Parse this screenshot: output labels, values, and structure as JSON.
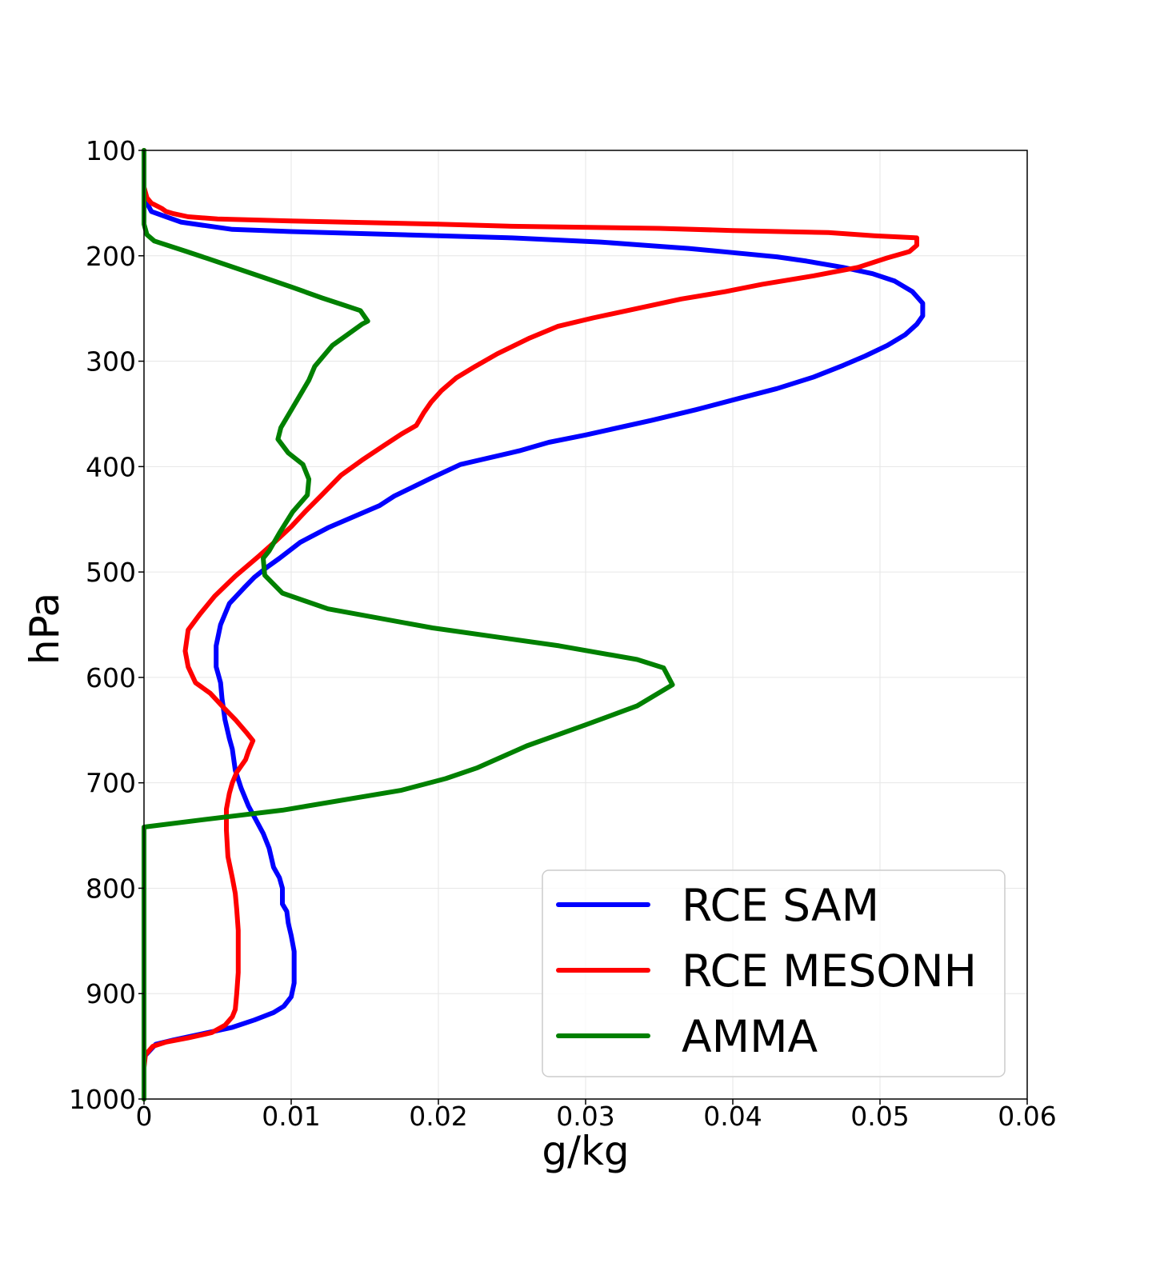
{
  "chart_data": {
    "type": "line",
    "title": "",
    "xlabel": "g/kg",
    "ylabel": "hPa",
    "xlim": [
      0,
      0.06
    ],
    "ylim": [
      1000,
      100
    ],
    "y_inverted": true,
    "grid": true,
    "legend_position": "lower-right",
    "x_ticks": [
      "0",
      "0.01",
      "0.02",
      "0.03",
      "0.04",
      "0.05",
      "0.06"
    ],
    "y_ticks": [
      "100",
      "200",
      "300",
      "400",
      "500",
      "600",
      "700",
      "800",
      "900",
      "1000"
    ],
    "series": [
      {
        "name": "RCE SAM",
        "color": "#0000ff",
        "points": [
          [
            0,
            1000
          ],
          [
            0,
            960
          ],
          [
            0.0008,
            948
          ],
          [
            0.002,
            944
          ],
          [
            0.004,
            938
          ],
          [
            0.006,
            932
          ],
          [
            0.0075,
            925
          ],
          [
            0.0088,
            918
          ],
          [
            0.0095,
            912
          ],
          [
            0.01,
            903
          ],
          [
            0.0102,
            890
          ],
          [
            0.0102,
            870
          ],
          [
            0.0102,
            860
          ],
          [
            0.01,
            845
          ],
          [
            0.0098,
            833
          ],
          [
            0.0097,
            822
          ],
          [
            0.0094,
            815
          ],
          [
            0.0094,
            800
          ],
          [
            0.0092,
            790
          ],
          [
            0.0088,
            780
          ],
          [
            0.0085,
            762
          ],
          [
            0.0081,
            748
          ],
          [
            0.0076,
            735
          ],
          [
            0.0071,
            722
          ],
          [
            0.0066,
            705
          ],
          [
            0.0062,
            688
          ],
          [
            0.006,
            668
          ],
          [
            0.0058,
            658
          ],
          [
            0.0055,
            640
          ],
          [
            0.0053,
            620
          ],
          [
            0.0052,
            605
          ],
          [
            0.0049,
            590
          ],
          [
            0.0049,
            570
          ],
          [
            0.0052,
            550
          ],
          [
            0.0058,
            530
          ],
          [
            0.0068,
            515
          ],
          [
            0.0075,
            505
          ],
          [
            0.0084,
            495
          ],
          [
            0.0092,
            487
          ],
          [
            0.0106,
            472
          ],
          [
            0.0125,
            458
          ],
          [
            0.015,
            443
          ],
          [
            0.016,
            437
          ],
          [
            0.017,
            428
          ],
          [
            0.0195,
            411
          ],
          [
            0.0215,
            398
          ],
          [
            0.0255,
            385
          ],
          [
            0.0275,
            377
          ],
          [
            0.03,
            370
          ],
          [
            0.0345,
            356
          ],
          [
            0.0375,
            346
          ],
          [
            0.0405,
            335
          ],
          [
            0.043,
            326
          ],
          [
            0.0455,
            315
          ],
          [
            0.0475,
            304
          ],
          [
            0.049,
            295
          ],
          [
            0.0505,
            285
          ],
          [
            0.0517,
            275
          ],
          [
            0.0525,
            265
          ],
          [
            0.0529,
            257
          ],
          [
            0.0529,
            245
          ],
          [
            0.0522,
            234
          ],
          [
            0.051,
            224
          ],
          [
            0.0495,
            217
          ],
          [
            0.0475,
            211
          ],
          [
            0.045,
            205
          ],
          [
            0.043,
            201
          ],
          [
            0.04,
            197
          ],
          [
            0.037,
            193
          ],
          [
            0.034,
            190
          ],
          [
            0.031,
            187
          ],
          [
            0.028,
            185
          ],
          [
            0.025,
            183
          ],
          [
            0.02,
            181
          ],
          [
            0.015,
            179
          ],
          [
            0.01,
            177
          ],
          [
            0.006,
            175
          ],
          [
            0.004,
            171
          ],
          [
            0.0025,
            168
          ],
          [
            0.0015,
            163
          ],
          [
            0.0005,
            158
          ],
          [
            0.0002,
            150
          ],
          [
            0,
            140
          ],
          [
            0,
            100
          ]
        ]
      },
      {
        "name": "RCE MESONH",
        "color": "#ff0000",
        "points": [
          [
            0,
            1000
          ],
          [
            0,
            970
          ],
          [
            0.0001,
            958
          ],
          [
            0.0006,
            950
          ],
          [
            0.0015,
            946
          ],
          [
            0.003,
            942
          ],
          [
            0.0046,
            937
          ],
          [
            0.0055,
            930
          ],
          [
            0.006,
            922
          ],
          [
            0.0062,
            915
          ],
          [
            0.0063,
            900
          ],
          [
            0.0064,
            880
          ],
          [
            0.0064,
            860
          ],
          [
            0.0064,
            840
          ],
          [
            0.0063,
            820
          ],
          [
            0.0062,
            805
          ],
          [
            0.006,
            790
          ],
          [
            0.0057,
            770
          ],
          [
            0.0056,
            745
          ],
          [
            0.0056,
            725
          ],
          [
            0.0058,
            710
          ],
          [
            0.006,
            700
          ],
          [
            0.0063,
            690
          ],
          [
            0.0069,
            678
          ],
          [
            0.0071,
            670
          ],
          [
            0.0074,
            660
          ],
          [
            0.007,
            653
          ],
          [
            0.0062,
            640
          ],
          [
            0.0055,
            630
          ],
          [
            0.0045,
            615
          ],
          [
            0.0035,
            605
          ],
          [
            0.003,
            590
          ],
          [
            0.0028,
            575
          ],
          [
            0.003,
            555
          ],
          [
            0.0038,
            540
          ],
          [
            0.0048,
            523
          ],
          [
            0.0062,
            504
          ],
          [
            0.0078,
            485
          ],
          [
            0.009,
            470
          ],
          [
            0.01,
            457
          ],
          [
            0.011,
            442
          ],
          [
            0.012,
            428
          ],
          [
            0.0134,
            408
          ],
          [
            0.0148,
            394
          ],
          [
            0.0163,
            380
          ],
          [
            0.0175,
            369
          ],
          [
            0.0185,
            361
          ],
          [
            0.019,
            349
          ],
          [
            0.0195,
            339
          ],
          [
            0.0202,
            328
          ],
          [
            0.0212,
            316
          ],
          [
            0.0225,
            305
          ],
          [
            0.024,
            293
          ],
          [
            0.0262,
            278
          ],
          [
            0.0281,
            267
          ],
          [
            0.0305,
            259
          ],
          [
            0.0335,
            250
          ],
          [
            0.0365,
            241
          ],
          [
            0.0395,
            234
          ],
          [
            0.042,
            227
          ],
          [
            0.0455,
            219
          ],
          [
            0.0485,
            211
          ],
          [
            0.0505,
            202
          ],
          [
            0.052,
            196
          ],
          [
            0.0525,
            190
          ],
          [
            0.0525,
            183
          ],
          [
            0.0496,
            181
          ],
          [
            0.0465,
            178
          ],
          [
            0.04,
            176
          ],
          [
            0.035,
            174
          ],
          [
            0.025,
            172
          ],
          [
            0.02,
            170
          ],
          [
            0.01,
            167
          ],
          [
            0.005,
            165
          ],
          [
            0.003,
            163
          ],
          [
            0.002,
            160
          ],
          [
            0.0015,
            158
          ],
          [
            0.0012,
            155
          ],
          [
            0.0005,
            150
          ],
          [
            0.0002,
            145
          ],
          [
            0,
            135
          ],
          [
            0,
            100
          ]
        ]
      },
      {
        "name": "AMMA",
        "color": "#008000",
        "points": [
          [
            0,
            1000
          ],
          [
            0,
            960
          ],
          [
            0,
            920
          ],
          [
            0,
            880
          ],
          [
            0,
            840
          ],
          [
            0,
            800
          ],
          [
            0,
            742
          ],
          [
            0.004,
            735
          ],
          [
            0.0094,
            726
          ],
          [
            0.0175,
            707
          ],
          [
            0.0205,
            696
          ],
          [
            0.0226,
            686
          ],
          [
            0.026,
            665
          ],
          [
            0.03,
            645
          ],
          [
            0.0335,
            627
          ],
          [
            0.0359,
            607
          ],
          [
            0.0353,
            591
          ],
          [
            0.0335,
            583
          ],
          [
            0.0282,
            570
          ],
          [
            0.0196,
            553
          ],
          [
            0.0125,
            535
          ],
          [
            0.0094,
            520
          ],
          [
            0.0082,
            503
          ],
          [
            0.0081,
            487
          ],
          [
            0.0085,
            480
          ],
          [
            0.0092,
            463
          ],
          [
            0.0101,
            443
          ],
          [
            0.0111,
            427
          ],
          [
            0.0112,
            412
          ],
          [
            0.0108,
            398
          ],
          [
            0.0098,
            387
          ],
          [
            0.0091,
            374
          ],
          [
            0.0093,
            363
          ],
          [
            0.0104,
            337
          ],
          [
            0.0112,
            318
          ],
          [
            0.0116,
            305
          ],
          [
            0.0128,
            285
          ],
          [
            0.0137,
            276
          ],
          [
            0.0148,
            265
          ],
          [
            0.0152,
            262
          ],
          [
            0.0147,
            252
          ],
          [
            0.0134,
            246
          ],
          [
            0.0121,
            240
          ],
          [
            0.0101,
            230
          ],
          [
            0.008,
            220
          ],
          [
            0.0044,
            203
          ],
          [
            0.0029,
            196
          ],
          [
            0.0007,
            186
          ],
          [
            0.0002,
            180
          ],
          [
            0,
            170
          ],
          [
            0,
            150
          ],
          [
            0,
            125
          ],
          [
            0,
            100
          ]
        ]
      }
    ]
  }
}
